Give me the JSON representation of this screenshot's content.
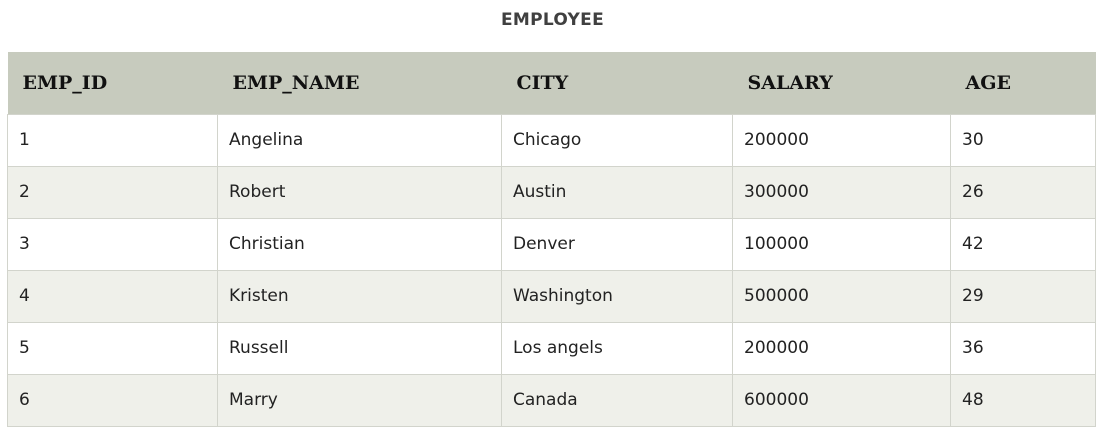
{
  "title": "EMPLOYEE",
  "columns": [
    "EMP_ID",
    "EMP_NAME",
    "CITY",
    "SALARY",
    "AGE"
  ],
  "rows": [
    [
      "1",
      "Angelina",
      "Chicago",
      "200000",
      "30"
    ],
    [
      "2",
      "Robert",
      "Austin",
      "300000",
      "26"
    ],
    [
      "3",
      "Christian",
      "Denver",
      "100000",
      "42"
    ],
    [
      "4",
      "Kristen",
      "Washington",
      "500000",
      "29"
    ],
    [
      "5",
      "Russell",
      "Los angels",
      "200000",
      "36"
    ],
    [
      "6",
      "Marry",
      "Canada",
      "600000",
      "48"
    ]
  ],
  "colors": {
    "header_bg": "#c7cbbe",
    "row_alt_bg": "#eff0ea",
    "border": "#d2d4cc"
  }
}
